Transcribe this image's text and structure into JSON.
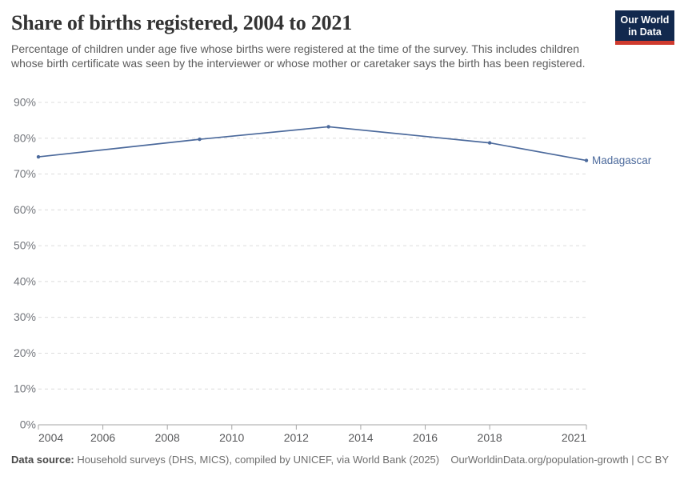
{
  "header": {
    "title": "Share of births registered, 2004 to 2021",
    "subtitle": "Percentage of children under age five whose births were registered at the time of the survey. This includes children whose birth certificate was seen by the interviewer or whose mother or caretaker says the birth has been registered.",
    "logo": {
      "line1": "Our World",
      "line2": "in Data"
    }
  },
  "footer": {
    "source_label": "Data source:",
    "source_text": " Household surveys (DHS, MICS), compiled by UNICEF, via World Bank (2025)",
    "link_text": "OurWorldinData.org/population-growth | CC BY"
  },
  "colors": {
    "series_blue": "#4c6a9c",
    "grid": "#dcdcdc",
    "axis": "#a5a5a5",
    "y_tick_label": "#73767c",
    "x_tick_label": "#58595b",
    "logo_bg": "#12294e",
    "logo_red": "#cf3a2e"
  },
  "chart_data": {
    "type": "line",
    "title": "Share of births registered, 2004 to 2021",
    "xlabel": "",
    "ylabel": "",
    "xlim": [
      2004,
      2021
    ],
    "ylim": [
      0,
      90
    ],
    "grid": "horizontal-dashed",
    "legend_position": "end-of-line-label",
    "x": [
      2004,
      2009,
      2013,
      2018,
      2021
    ],
    "series": [
      {
        "name": "Madagascar",
        "color": "#4c6a9c",
        "values": [
          74.8,
          79.7,
          83.2,
          78.7,
          73.8
        ]
      }
    ],
    "x_ticks": [
      {
        "value": 2004,
        "label": "2004"
      },
      {
        "value": 2006,
        "label": "2006"
      },
      {
        "value": 2008,
        "label": "2008"
      },
      {
        "value": 2010,
        "label": "2010"
      },
      {
        "value": 2012,
        "label": "2012"
      },
      {
        "value": 2014,
        "label": "2014"
      },
      {
        "value": 2016,
        "label": "2016"
      },
      {
        "value": 2018,
        "label": "2018"
      },
      {
        "value": 2021,
        "label": "2021"
      }
    ],
    "y_ticks": [
      {
        "value": 0,
        "label": "0%"
      },
      {
        "value": 10,
        "label": "10%"
      },
      {
        "value": 20,
        "label": "20%"
      },
      {
        "value": 30,
        "label": "30%"
      },
      {
        "value": 40,
        "label": "40%"
      },
      {
        "value": 50,
        "label": "50%"
      },
      {
        "value": 60,
        "label": "60%"
      },
      {
        "value": 70,
        "label": "70%"
      },
      {
        "value": 80,
        "label": "80%"
      },
      {
        "value": 90,
        "label": "90%"
      }
    ]
  }
}
